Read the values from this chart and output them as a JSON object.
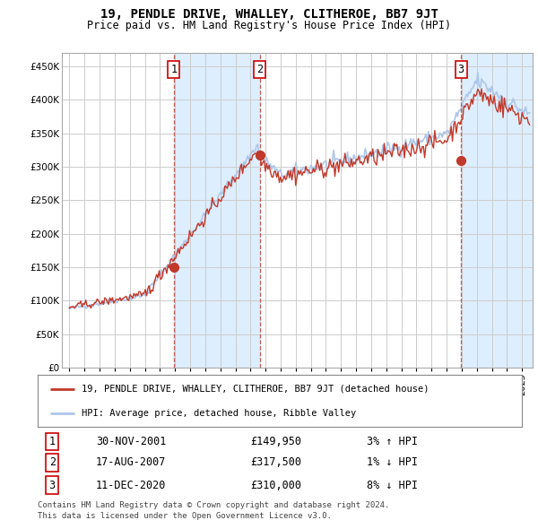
{
  "title": "19, PENDLE DRIVE, WHALLEY, CLITHEROE, BB7 9JT",
  "subtitle": "Price paid vs. HM Land Registry's House Price Index (HPI)",
  "legend_line1": "19, PENDLE DRIVE, WHALLEY, CLITHEROE, BB7 9JT (detached house)",
  "legend_line2": "HPI: Average price, detached house, Ribble Valley",
  "footer1": "Contains HM Land Registry data © Crown copyright and database right 2024.",
  "footer2": "This data is licensed under the Open Government Licence v3.0.",
  "transactions": [
    {
      "num": 1,
      "date": "30-NOV-2001",
      "price": 149950,
      "price_str": "£149,950",
      "pct": "3%",
      "dir": "↑",
      "year": 2001.92
    },
    {
      "num": 2,
      "date": "17-AUG-2007",
      "price": 317500,
      "price_str": "£317,500",
      "pct": "1%",
      "dir": "↓",
      "year": 2007.63
    },
    {
      "num": 3,
      "date": "11-DEC-2020",
      "price": 310000,
      "price_str": "£310,000",
      "pct": "8%",
      "dir": "↓",
      "year": 2020.95
    }
  ],
  "hpi_color": "#aec6e8",
  "price_color": "#c0392b",
  "dot_color": "#c0392b",
  "dashed_color": "#c0392b",
  "bg_shaded_color": "#ddeeff",
  "grid_color": "#cccccc",
  "ylim": [
    0,
    470000
  ],
  "yticks": [
    0,
    50000,
    100000,
    150000,
    200000,
    250000,
    300000,
    350000,
    400000,
    450000
  ],
  "xlim_start": 1994.5,
  "xlim_end": 2025.7
}
